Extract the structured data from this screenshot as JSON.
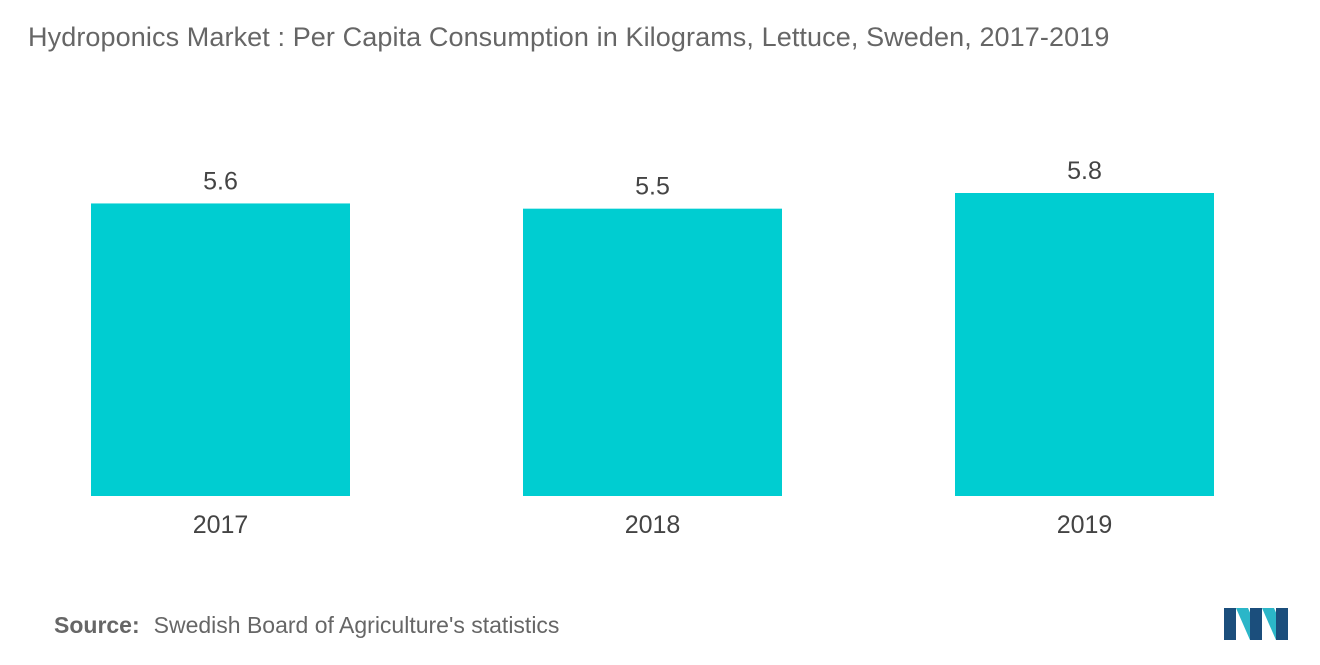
{
  "title": "Hydroponics Market : Per Capita Consumption in Kilograms, Lettuce, Sweden, 2017-2019",
  "source": {
    "label": "Source:",
    "text": "Swedish Board of Agriculture's statistics"
  },
  "logo": {
    "icon": "mordor-intelligence-logo-icon",
    "colors": [
      "#1b4e7c",
      "#2bb6c8"
    ]
  },
  "colors": {
    "bar": "#00cdd1",
    "title": "#666666",
    "labels": "#444444"
  },
  "chart_data": {
    "type": "bar",
    "categories": [
      "2017",
      "2018",
      "2019"
    ],
    "values": [
      5.6,
      5.5,
      5.8
    ],
    "value_labels": [
      "5.6",
      "5.5",
      "5.8"
    ],
    "title": "Hydroponics Market : Per Capita Consumption in Kilograms, Lettuce, Sweden, 2017-2019",
    "xlabel": "",
    "ylabel": "",
    "ylim": [
      0,
      5.8
    ],
    "grid": false,
    "legend": "none"
  }
}
